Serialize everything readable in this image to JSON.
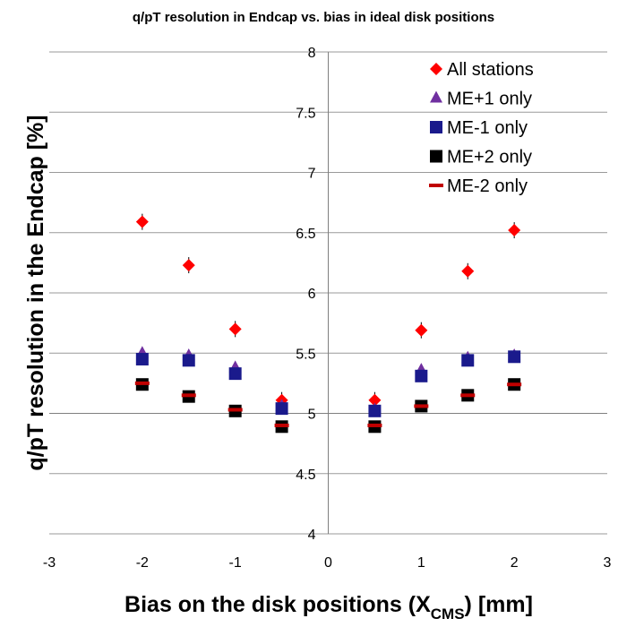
{
  "chart_data": {
    "type": "scatter",
    "title": "q/pT resolution in Endcap vs. bias in ideal disk positions",
    "xlabel": {
      "main": "Bias on the disk positions (X",
      "sub": "CMS",
      "end": ") [mm]"
    },
    "ylabel": "q/pT resolution in the Endcap [%]",
    "xlim": [
      -3,
      3
    ],
    "ylim": [
      4,
      8
    ],
    "xticks": [
      -3,
      -2,
      -1,
      0,
      1,
      2,
      3
    ],
    "xtick_labels": [
      "-3",
      "-2",
      "-1",
      "0",
      "1",
      "2",
      "3"
    ],
    "yticks": [
      4,
      4.5,
      5,
      5.5,
      6,
      6.5,
      7,
      7.5,
      8
    ],
    "ytick_labels": [
      "4",
      "4.5",
      "5",
      "5.5",
      "6",
      "6.5",
      "7",
      "7.5",
      "8"
    ],
    "grid": "horizontal",
    "legend_position": "top-right",
    "series": [
      {
        "name": "All stations",
        "marker": "diamond",
        "color": "#ff0000",
        "x": [
          -2,
          -1.5,
          -1,
          -0.5,
          0.5,
          1,
          1.5,
          2
        ],
        "y": [
          6.59,
          6.23,
          5.7,
          5.11,
          5.11,
          5.69,
          6.18,
          6.52
        ]
      },
      {
        "name": "ME+1 only",
        "marker": "triangle",
        "color": "#7030a0",
        "x": [
          -2,
          -1.5,
          -1,
          -0.5,
          0.5,
          1,
          1.5,
          2
        ],
        "y": [
          5.5,
          5.48,
          5.38,
          5.06,
          5.03,
          5.36,
          5.46,
          5.48
        ]
      },
      {
        "name": "ME-1 only",
        "marker": "square",
        "color": "#1a1a8c",
        "x": [
          -2,
          -1.5,
          -1,
          -0.5,
          0.5,
          1,
          1.5,
          2
        ],
        "y": [
          5.45,
          5.44,
          5.33,
          5.04,
          5.02,
          5.31,
          5.44,
          5.47
        ]
      },
      {
        "name": "ME+2 only",
        "marker": "square",
        "color": "#000000",
        "x": [
          -2,
          -1.5,
          -1,
          -0.5,
          0.5,
          1,
          1.5,
          2
        ],
        "y": [
          5.24,
          5.14,
          5.02,
          4.89,
          4.89,
          5.06,
          5.15,
          5.24
        ]
      },
      {
        "name": "ME-2 only",
        "marker": "dash",
        "color": "#c00000",
        "x": [
          -2,
          -1.5,
          -1,
          -0.5,
          0.5,
          1,
          1.5,
          2
        ],
        "y": [
          5.25,
          5.15,
          5.03,
          4.9,
          4.9,
          5.06,
          5.15,
          5.24
        ]
      }
    ]
  }
}
